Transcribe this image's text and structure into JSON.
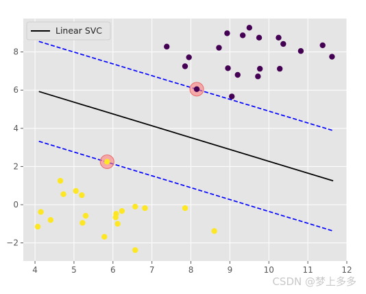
{
  "chart_data": {
    "type": "scatter",
    "title": "",
    "xlabel": "",
    "ylabel": "",
    "xlim": [
      3.7,
      12.0
    ],
    "ylim": [
      -2.95,
      9.75
    ],
    "xticks": [
      4,
      5,
      6,
      7,
      8,
      9,
      10,
      11,
      12
    ],
    "yticks": [
      -2,
      0,
      2,
      4,
      6,
      8
    ],
    "grid": true,
    "legend": {
      "location": "top-left",
      "entries": [
        "Linear SVC"
      ]
    },
    "style": {
      "background": "#e5e5e5",
      "grid_color": "#ffffff"
    },
    "lines": [
      {
        "name": "Linear SVC",
        "role": "decision-boundary",
        "color": "#000000",
        "dash": "solid",
        "x": [
          4.1,
          11.65
        ],
        "y": [
          5.93,
          1.25
        ]
      },
      {
        "name": "",
        "role": "upper-margin",
        "color": "#0000ff",
        "dash": "dashed",
        "x": [
          4.1,
          11.65
        ],
        "y": [
          8.55,
          3.88
        ]
      },
      {
        "name": "",
        "role": "lower-margin",
        "color": "#0000ff",
        "dash": "dashed",
        "x": [
          4.1,
          11.65
        ],
        "y": [
          3.32,
          -1.38
        ]
      }
    ],
    "support_vectors": [
      {
        "x": 8.15,
        "y": 6.05
      },
      {
        "x": 5.85,
        "y": 2.25
      }
    ],
    "series": [
      {
        "class": 1,
        "color": "#440154",
        "points": [
          [
            7.38,
            8.28
          ],
          [
            7.95,
            7.72
          ],
          [
            7.85,
            7.25
          ],
          [
            8.72,
            8.22
          ],
          [
            8.93,
            8.98
          ],
          [
            9.33,
            8.87
          ],
          [
            9.5,
            9.27
          ],
          [
            9.75,
            8.75
          ],
          [
            10.25,
            8.75
          ],
          [
            10.37,
            8.42
          ],
          [
            10.82,
            8.05
          ],
          [
            11.38,
            8.35
          ],
          [
            11.62,
            7.75
          ],
          [
            8.95,
            7.15
          ],
          [
            9.2,
            6.8
          ],
          [
            9.72,
            6.72
          ],
          [
            9.77,
            7.12
          ],
          [
            10.28,
            7.12
          ],
          [
            8.15,
            6.05
          ],
          [
            9.05,
            5.67
          ]
        ]
      },
      {
        "class": 0,
        "color": "#fde725",
        "points": [
          [
            4.65,
            1.25
          ],
          [
            4.73,
            0.55
          ],
          [
            5.05,
            0.72
          ],
          [
            5.2,
            0.5
          ],
          [
            5.3,
            -0.58
          ],
          [
            5.22,
            -0.95
          ],
          [
            4.15,
            -0.38
          ],
          [
            4.07,
            -1.15
          ],
          [
            4.4,
            -0.8
          ],
          [
            6.08,
            -0.48
          ],
          [
            6.07,
            -0.66
          ],
          [
            6.23,
            -0.33
          ],
          [
            6.12,
            -1.0
          ],
          [
            6.57,
            -0.1
          ],
          [
            6.82,
            -0.18
          ],
          [
            7.85,
            -0.18
          ],
          [
            5.78,
            -1.68
          ],
          [
            6.57,
            -2.38
          ],
          [
            8.6,
            -1.38
          ],
          [
            5.85,
            2.25
          ]
        ]
      }
    ]
  },
  "watermark": "CSDN @梦上多多"
}
